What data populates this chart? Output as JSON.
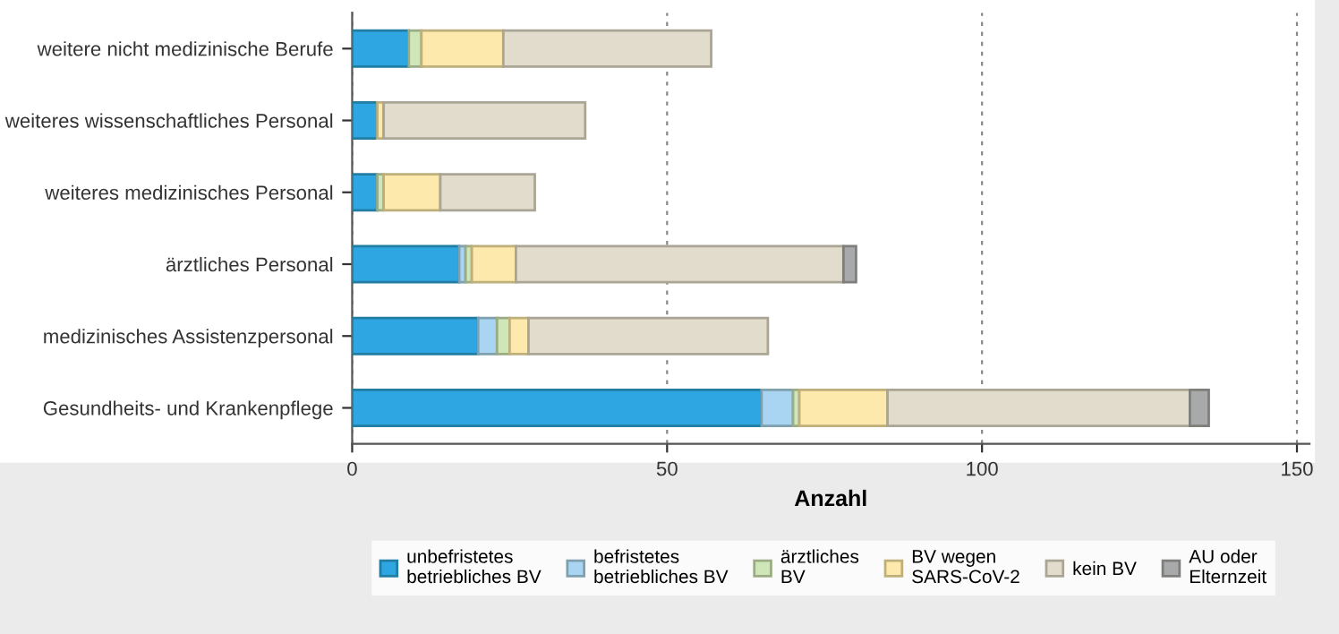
{
  "chart_data": {
    "type": "bar",
    "orientation": "horizontal",
    "stacked": true,
    "xlabel": "Anzahl",
    "categories": [
      "weitere nicht medizinische Berufe",
      "weiteres wissenschaftliches Personal",
      "weiteres medizinisches Personal",
      "ärztliches Personal",
      "medizinisches Assistenzpersonal",
      "Gesundheits- und Krankenpflege"
    ],
    "series": [
      {
        "name": "unbefristetes\nbetriebliches BV",
        "color": "#2ea6e2",
        "values": [
          9,
          4,
          4,
          17,
          20,
          65
        ]
      },
      {
        "name": "befristetes\nbetriebliches BV",
        "color": "#a9d5f3",
        "values": [
          0,
          0,
          0,
          1,
          3,
          5
        ]
      },
      {
        "name": "ärztliches\nBV",
        "color": "#cfe6b8",
        "values": [
          2,
          0,
          1,
          1,
          2,
          1
        ]
      },
      {
        "name": "BV wegen\nSARS-CoV-2",
        "color": "#fde9ab",
        "values": [
          13,
          1,
          9,
          7,
          3,
          14
        ]
      },
      {
        "name": "kein BV",
        "color": "#e2dccd",
        "values": [
          33,
          32,
          15,
          52,
          38,
          48
        ]
      },
      {
        "name": "AU oder\nElternzeit",
        "color": "#a8a9ab",
        "values": [
          0,
          0,
          0,
          2,
          0,
          3
        ]
      }
    ],
    "xlim": [
      0,
      152
    ],
    "xticks": [
      0,
      50,
      100,
      150
    ],
    "grid": "x",
    "legend": "bottom"
  }
}
